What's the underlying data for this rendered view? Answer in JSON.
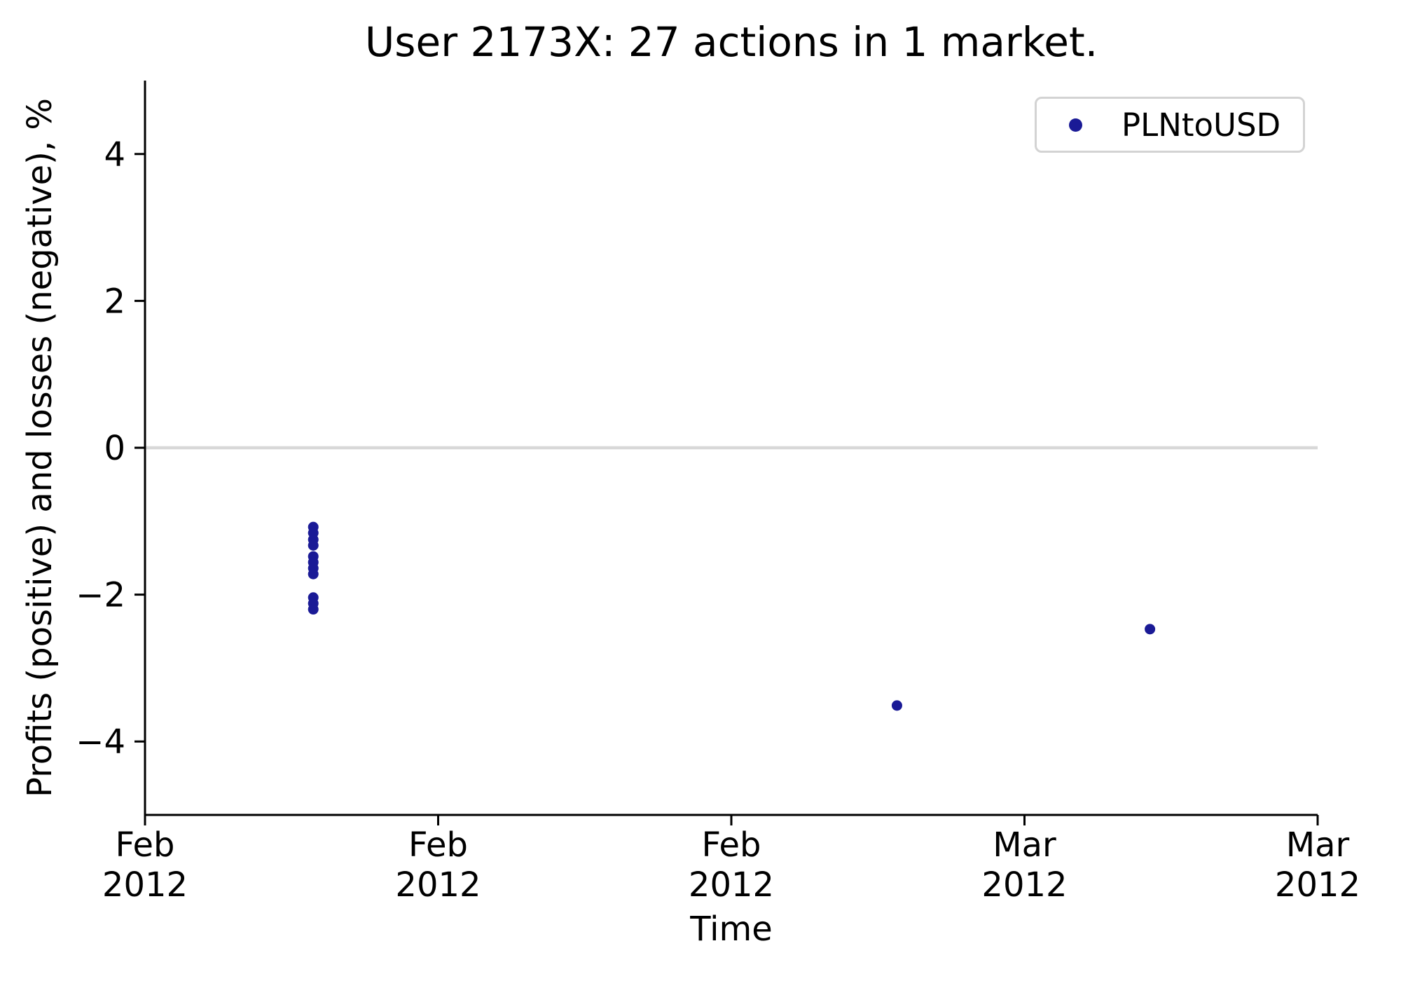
{
  "title": "User 2173X: 27 actions in 1 market.",
  "legend": {
    "position": "upper right",
    "items": [
      {
        "label": "PLNtoUSD",
        "marker": "circle",
        "color": "#1a1a96"
      }
    ]
  },
  "chart_data": {
    "type": "scatter",
    "title": "User 2173X: 27 actions in 1 market.",
    "xlabel": "Time",
    "ylabel": "Profits (positive) and losses (negative), %",
    "x_unit": "weeks from first x tick (ticks evenly spaced 1 week apart)",
    "xlim": [
      0,
      4
    ],
    "ylim": [
      -5,
      5
    ],
    "grid": false,
    "legend_position": "upper right",
    "zero_line": {
      "y": 0,
      "color": "#d8d8d8"
    },
    "x_ticks": [
      {
        "pos": 0,
        "label": [
          "Feb",
          "2012"
        ]
      },
      {
        "pos": 1,
        "label": [
          "Feb",
          "2012"
        ]
      },
      {
        "pos": 2,
        "label": [
          "Feb",
          "2012"
        ]
      },
      {
        "pos": 3,
        "label": [
          "Mar",
          "2012"
        ]
      },
      {
        "pos": 4,
        "label": [
          "Mar",
          "2012"
        ]
      }
    ],
    "y_ticks": [
      {
        "pos": 4,
        "label": "4"
      },
      {
        "pos": 2,
        "label": "2"
      },
      {
        "pos": 0,
        "label": "0"
      },
      {
        "pos": -2,
        "label": "−2"
      },
      {
        "pos": -4,
        "label": "−4"
      }
    ],
    "series": [
      {
        "name": "PLNtoUSD",
        "color": "#1a1a96",
        "marker": "circle",
        "points": [
          {
            "x": 0.574,
            "y": -1.08
          },
          {
            "x": 0.574,
            "y": -1.16
          },
          {
            "x": 0.574,
            "y": -1.25
          },
          {
            "x": 0.574,
            "y": -1.33
          },
          {
            "x": 0.574,
            "y": -1.48
          },
          {
            "x": 0.574,
            "y": -1.56
          },
          {
            "x": 0.574,
            "y": -1.64
          },
          {
            "x": 0.574,
            "y": -1.72
          },
          {
            "x": 0.574,
            "y": -2.04
          },
          {
            "x": 0.574,
            "y": -2.12
          },
          {
            "x": 0.574,
            "y": -2.2
          },
          {
            "x": 2.565,
            "y": -3.51
          },
          {
            "x": 3.428,
            "y": -2.47
          }
        ]
      }
    ]
  }
}
